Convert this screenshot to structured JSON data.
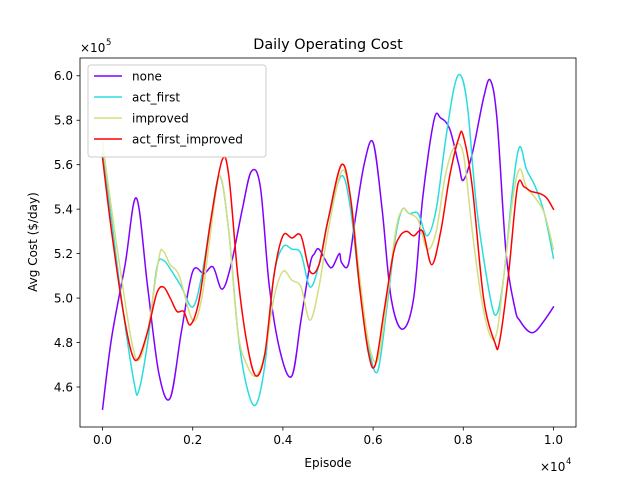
{
  "chart_data": {
    "type": "line",
    "title": "Daily Operating Cost",
    "xlabel": "Episode",
    "ylabel": "Avg Cost ($/day)",
    "x_multiplier_label": "×10",
    "x_multiplier_exp": "4",
    "y_multiplier_label": "×10",
    "y_multiplier_exp": "5",
    "xlim": [
      -0.05,
      1.05
    ],
    "ylim": [
      4.42,
      6.08
    ],
    "x_ticks": [
      0.0,
      0.2,
      0.4,
      0.6,
      0.8,
      1.0
    ],
    "x_tick_labels": [
      "0.0",
      "0.2",
      "0.4",
      "0.6",
      "0.8",
      "1.0"
    ],
    "y_ticks": [
      4.6,
      4.8,
      5.0,
      5.2,
      5.4,
      5.6,
      5.8,
      6.0
    ],
    "y_tick_labels": [
      "4.6",
      "4.8",
      "5.0",
      "5.2",
      "5.4",
      "5.6",
      "5.8",
      "6.0"
    ],
    "grid": false,
    "legend_position": "top-left",
    "series": [
      {
        "name": "none",
        "color": "#8000ff",
        "points": [
          [
            0.0,
            4.5
          ],
          [
            0.02,
            4.82
          ],
          [
            0.05,
            5.15
          ],
          [
            0.075,
            5.45
          ],
          [
            0.1,
            5.05
          ],
          [
            0.125,
            4.66
          ],
          [
            0.15,
            4.55
          ],
          [
            0.175,
            4.85
          ],
          [
            0.2,
            5.12
          ],
          [
            0.225,
            5.11
          ],
          [
            0.245,
            5.14
          ],
          [
            0.265,
            5.04
          ],
          [
            0.285,
            5.15
          ],
          [
            0.31,
            5.4
          ],
          [
            0.33,
            5.57
          ],
          [
            0.35,
            5.5
          ],
          [
            0.37,
            5.05
          ],
          [
            0.395,
            4.75
          ],
          [
            0.42,
            4.65
          ],
          [
            0.44,
            4.9
          ],
          [
            0.46,
            5.15
          ],
          [
            0.47,
            5.2
          ],
          [
            0.48,
            5.22
          ],
          [
            0.5,
            5.15
          ],
          [
            0.51,
            5.14
          ],
          [
            0.525,
            5.2
          ],
          [
            0.53,
            5.16
          ],
          [
            0.545,
            5.15
          ],
          [
            0.56,
            5.35
          ],
          [
            0.58,
            5.6
          ],
          [
            0.6,
            5.7
          ],
          [
            0.62,
            5.4
          ],
          [
            0.64,
            5.0
          ],
          [
            0.665,
            4.86
          ],
          [
            0.69,
            5.0
          ],
          [
            0.71,
            5.45
          ],
          [
            0.735,
            5.8
          ],
          [
            0.75,
            5.81
          ],
          [
            0.77,
            5.76
          ],
          [
            0.79,
            5.6
          ],
          [
            0.8,
            5.53
          ],
          [
            0.82,
            5.65
          ],
          [
            0.845,
            5.9
          ],
          [
            0.86,
            5.98
          ],
          [
            0.875,
            5.8
          ],
          [
            0.895,
            5.2
          ],
          [
            0.915,
            4.95
          ],
          [
            0.925,
            4.9
          ],
          [
            0.945,
            4.85
          ],
          [
            0.96,
            4.85
          ],
          [
            0.98,
            4.9
          ],
          [
            1.0,
            4.96
          ]
        ]
      },
      {
        "name": "act_first",
        "color": "#2adddd",
        "points": [
          [
            0.0,
            5.65
          ],
          [
            0.02,
            5.35
          ],
          [
            0.045,
            4.95
          ],
          [
            0.07,
            4.62
          ],
          [
            0.08,
            4.58
          ],
          [
            0.1,
            4.8
          ],
          [
            0.12,
            5.13
          ],
          [
            0.135,
            5.17
          ],
          [
            0.16,
            5.1
          ],
          [
            0.175,
            5.05
          ],
          [
            0.2,
            4.96
          ],
          [
            0.22,
            5.1
          ],
          [
            0.24,
            5.35
          ],
          [
            0.26,
            5.55
          ],
          [
            0.28,
            5.3
          ],
          [
            0.3,
            4.85
          ],
          [
            0.32,
            4.6
          ],
          [
            0.34,
            4.52
          ],
          [
            0.36,
            4.7
          ],
          [
            0.38,
            5.1
          ],
          [
            0.4,
            5.23
          ],
          [
            0.42,
            5.22
          ],
          [
            0.44,
            5.2
          ],
          [
            0.46,
            5.05
          ],
          [
            0.48,
            5.15
          ],
          [
            0.5,
            5.35
          ],
          [
            0.53,
            5.55
          ],
          [
            0.55,
            5.4
          ],
          [
            0.57,
            5.05
          ],
          [
            0.59,
            4.78
          ],
          [
            0.61,
            4.67
          ],
          [
            0.63,
            4.95
          ],
          [
            0.65,
            5.28
          ],
          [
            0.665,
            5.4
          ],
          [
            0.68,
            5.38
          ],
          [
            0.7,
            5.38
          ],
          [
            0.72,
            5.28
          ],
          [
            0.74,
            5.4
          ],
          [
            0.76,
            5.7
          ],
          [
            0.78,
            5.95
          ],
          [
            0.795,
            6.0
          ],
          [
            0.81,
            5.85
          ],
          [
            0.83,
            5.4
          ],
          [
            0.86,
            5.0
          ],
          [
            0.875,
            4.93
          ],
          [
            0.89,
            5.1
          ],
          [
            0.91,
            5.5
          ],
          [
            0.925,
            5.68
          ],
          [
            0.94,
            5.58
          ],
          [
            0.96,
            5.5
          ],
          [
            0.98,
            5.38
          ],
          [
            1.0,
            5.18
          ]
        ]
      },
      {
        "name": "improved",
        "color": "#d4dd80",
        "points": [
          [
            0.0,
            5.7
          ],
          [
            0.02,
            5.4
          ],
          [
            0.045,
            5.05
          ],
          [
            0.065,
            4.8
          ],
          [
            0.08,
            4.72
          ],
          [
            0.1,
            4.85
          ],
          [
            0.125,
            5.18
          ],
          [
            0.135,
            5.21
          ],
          [
            0.15,
            5.15
          ],
          [
            0.17,
            5.1
          ],
          [
            0.2,
            4.9
          ],
          [
            0.22,
            5.0
          ],
          [
            0.24,
            5.3
          ],
          [
            0.26,
            5.55
          ],
          [
            0.28,
            5.3
          ],
          [
            0.3,
            4.85
          ],
          [
            0.32,
            4.7
          ],
          [
            0.34,
            4.65
          ],
          [
            0.36,
            4.75
          ],
          [
            0.38,
            5.0
          ],
          [
            0.4,
            5.12
          ],
          [
            0.42,
            5.08
          ],
          [
            0.44,
            5.05
          ],
          [
            0.46,
            4.9
          ],
          [
            0.48,
            5.05
          ],
          [
            0.5,
            5.3
          ],
          [
            0.53,
            5.57
          ],
          [
            0.55,
            5.45
          ],
          [
            0.57,
            5.1
          ],
          [
            0.59,
            4.8
          ],
          [
            0.61,
            4.72
          ],
          [
            0.63,
            4.98
          ],
          [
            0.65,
            5.3
          ],
          [
            0.665,
            5.4
          ],
          [
            0.68,
            5.38
          ],
          [
            0.7,
            5.35
          ],
          [
            0.72,
            5.22
          ],
          [
            0.74,
            5.3
          ],
          [
            0.76,
            5.55
          ],
          [
            0.78,
            5.68
          ],
          [
            0.8,
            5.65
          ],
          [
            0.82,
            5.3
          ],
          [
            0.84,
            5.0
          ],
          [
            0.86,
            4.83
          ],
          [
            0.875,
            4.85
          ],
          [
            0.89,
            5.1
          ],
          [
            0.91,
            5.45
          ],
          [
            0.925,
            5.58
          ],
          [
            0.94,
            5.5
          ],
          [
            0.96,
            5.45
          ],
          [
            0.98,
            5.38
          ],
          [
            1.0,
            5.22
          ]
        ]
      },
      {
        "name": "act_first_improved",
        "color": "#ff0000",
        "points": [
          [
            0.0,
            5.63
          ],
          [
            0.02,
            5.3
          ],
          [
            0.045,
            4.95
          ],
          [
            0.065,
            4.75
          ],
          [
            0.08,
            4.73
          ],
          [
            0.1,
            4.85
          ],
          [
            0.12,
            5.02
          ],
          [
            0.135,
            5.05
          ],
          [
            0.15,
            5.0
          ],
          [
            0.165,
            4.94
          ],
          [
            0.18,
            4.94
          ],
          [
            0.195,
            4.88
          ],
          [
            0.215,
            5.0
          ],
          [
            0.24,
            5.35
          ],
          [
            0.265,
            5.62
          ],
          [
            0.28,
            5.55
          ],
          [
            0.3,
            5.1
          ],
          [
            0.32,
            4.8
          ],
          [
            0.34,
            4.65
          ],
          [
            0.36,
            4.75
          ],
          [
            0.38,
            5.1
          ],
          [
            0.4,
            5.28
          ],
          [
            0.42,
            5.27
          ],
          [
            0.44,
            5.28
          ],
          [
            0.46,
            5.12
          ],
          [
            0.48,
            5.15
          ],
          [
            0.5,
            5.35
          ],
          [
            0.53,
            5.6
          ],
          [
            0.55,
            5.45
          ],
          [
            0.57,
            5.05
          ],
          [
            0.59,
            4.75
          ],
          [
            0.605,
            4.7
          ],
          [
            0.625,
            4.95
          ],
          [
            0.645,
            5.2
          ],
          [
            0.66,
            5.28
          ],
          [
            0.675,
            5.3
          ],
          [
            0.69,
            5.28
          ],
          [
            0.71,
            5.3
          ],
          [
            0.73,
            5.15
          ],
          [
            0.75,
            5.3
          ],
          [
            0.77,
            5.55
          ],
          [
            0.79,
            5.72
          ],
          [
            0.8,
            5.73
          ],
          [
            0.82,
            5.5
          ],
          [
            0.845,
            5.0
          ],
          [
            0.87,
            4.8
          ],
          [
            0.88,
            4.8
          ],
          [
            0.9,
            5.1
          ],
          [
            0.92,
            5.5
          ],
          [
            0.935,
            5.5
          ],
          [
            0.95,
            5.48
          ],
          [
            0.97,
            5.47
          ],
          [
            0.985,
            5.45
          ],
          [
            1.0,
            5.4
          ]
        ]
      }
    ]
  }
}
